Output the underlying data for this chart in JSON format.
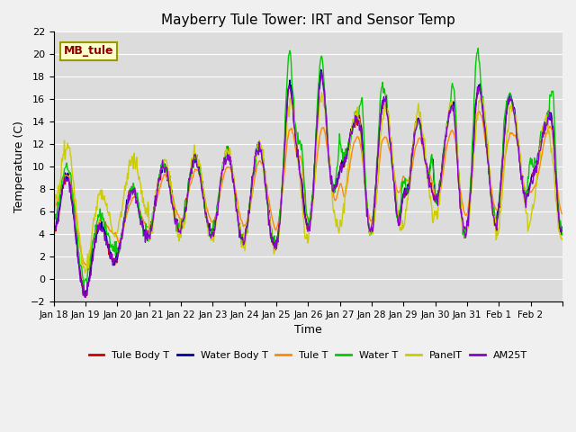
{
  "title": "Mayberry Tule Tower: IRT and Sensor Temp",
  "xlabel": "Time",
  "ylabel": "Temperature (C)",
  "ylim": [
    -2,
    22
  ],
  "background_color": "#dcdcdc",
  "figure_facecolor": "#f0f0f0",
  "grid_color": "white",
  "legend_label": "MB_tule",
  "legend_label_color": "#8b0000",
  "legend_label_bg": "#ffffcc",
  "legend_label_border": "#999900",
  "x_tick_labels": [
    "Jan 18",
    "Jan 19",
    "Jan 20",
    "Jan 21",
    "Jan 22",
    "Jan 23",
    "Jan 24",
    "Jan 25",
    "Jan 26",
    "Jan 27",
    "Jan 28",
    "Jan 29",
    "Jan 30",
    "Jan 31",
    "Feb 1",
    "Feb 2",
    ""
  ],
  "y_ticks": [
    -2,
    0,
    2,
    4,
    6,
    8,
    10,
    12,
    14,
    16,
    18,
    20,
    22
  ],
  "series": [
    {
      "label": "Tule Body T",
      "color": "#cc0000",
      "lw": 1.0
    },
    {
      "label": "Water Body T",
      "color": "#000099",
      "lw": 1.0
    },
    {
      "label": "Tule T",
      "color": "#ff8800",
      "lw": 1.0
    },
    {
      "label": "Water T",
      "color": "#00cc00",
      "lw": 1.0
    },
    {
      "label": "PanelT",
      "color": "#cccc00",
      "lw": 1.0
    },
    {
      "label": "AM25T",
      "color": "#8800cc",
      "lw": 1.0
    }
  ]
}
